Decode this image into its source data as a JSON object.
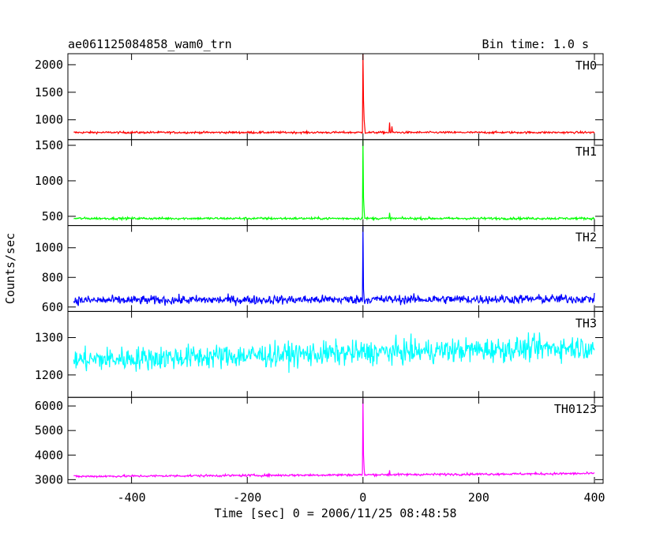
{
  "chart_data": {
    "type": "line",
    "title_left": "ae061125084858_wam0_trn",
    "title_right": "Bin time: 1.0 s",
    "xlabel": "Time [sec] 0 = 2006/11/25 08:48:58",
    "ylabel": "Counts/sec",
    "xlim": [
      -510,
      415
    ],
    "x_ticks": [
      -400,
      -200,
      0,
      200,
      400
    ],
    "x_range": [
      -500,
      400
    ],
    "panels": [
      {
        "name": "TH0",
        "color": "#ff0000",
        "ylim": [
          640,
          2200
        ],
        "y_ticks": [
          1000,
          1500,
          2000
        ],
        "baseline": 770,
        "noise": 18,
        "trend": 0,
        "events": [
          {
            "x": 0,
            "y": 2190
          },
          {
            "x": 1,
            "y": 1350
          },
          {
            "x": 2,
            "y": 1000
          },
          {
            "x": 3,
            "y": 870
          },
          {
            "x": 46,
            "y": 950
          },
          {
            "x": 50,
            "y": 880
          }
        ]
      },
      {
        "name": "TH1",
        "color": "#00ff00",
        "ylim": [
          370,
          1580
        ],
        "y_ticks": [
          500,
          1000,
          1500
        ],
        "baseline": 470,
        "noise": 16,
        "trend": 0,
        "events": [
          {
            "x": 0,
            "y": 1570
          },
          {
            "x": 1,
            "y": 760
          },
          {
            "x": 2,
            "y": 580
          },
          {
            "x": 46,
            "y": 550
          }
        ]
      },
      {
        "name": "TH2",
        "color": "#0000ff",
        "ylim": [
          570,
          1150
        ],
        "y_ticks": [
          600,
          800,
          1000
        ],
        "baseline": 645,
        "noise": 30,
        "trend": 10,
        "events": [
          {
            "x": 0,
            "y": 1145
          },
          {
            "x": 1,
            "y": 720
          }
        ]
      },
      {
        "name": "TH3",
        "color": "#00ffff",
        "ylim": [
          1140,
          1370
        ],
        "y_ticks": [
          1200,
          1300
        ],
        "baseline": 1240,
        "noise": 32,
        "trend": 35,
        "events": []
      },
      {
        "name": "TH0123",
        "color": "#ff00ff",
        "ylim": [
          2850,
          6350
        ],
        "y_ticks": [
          3000,
          4000,
          5000,
          6000
        ],
        "baseline": 3130,
        "noise": 45,
        "trend": 120,
        "events": [
          {
            "x": 0,
            "y": 6300
          },
          {
            "x": 1,
            "y": 4000
          },
          {
            "x": 2,
            "y": 3450
          },
          {
            "x": 46,
            "y": 3380
          }
        ]
      }
    ]
  }
}
